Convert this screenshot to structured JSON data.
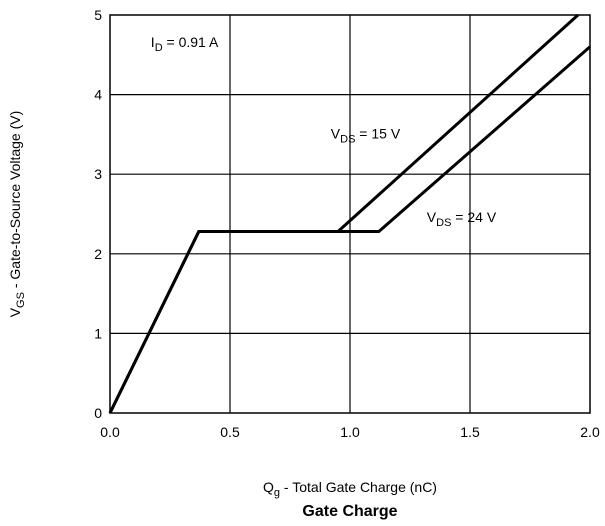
{
  "chart_data": {
    "type": "line",
    "title": "Gate Charge",
    "xlabel": {
      "main": "Q",
      "sub": "g",
      "rest": " - Total Gate Charge (nC)"
    },
    "ylabel": {
      "main": "V",
      "sub": "GS",
      "rest": " - Gate-to-Source Voltage (V)"
    },
    "xlim": [
      0,
      2.0
    ],
    "ylim": [
      0,
      5
    ],
    "x_ticks": [
      "0.0",
      "0.5",
      "1.0",
      "1.5",
      "2.0"
    ],
    "y_ticks": [
      "0",
      "1",
      "2",
      "3",
      "4",
      "5"
    ],
    "grid": true,
    "annotations": [
      {
        "main": "I",
        "sub": "D",
        "rest": " = 0.91 A",
        "x": 0.17,
        "y": 4.6
      },
      {
        "main": "V",
        "sub": "DS",
        "rest": " = 15 V",
        "x": 0.92,
        "y": 3.45
      },
      {
        "main": "V",
        "sub": "DS",
        "rest": " = 24 V",
        "x": 1.32,
        "y": 2.4
      }
    ],
    "series": [
      {
        "x": [
          0,
          0.37,
          0.95,
          1.95
        ],
        "y": [
          0,
          2.28,
          2.28,
          5.0
        ]
      },
      {
        "x": [
          0,
          0.37,
          1.12,
          2.0
        ],
        "y": [
          0,
          2.28,
          2.28,
          4.6
        ]
      }
    ]
  }
}
